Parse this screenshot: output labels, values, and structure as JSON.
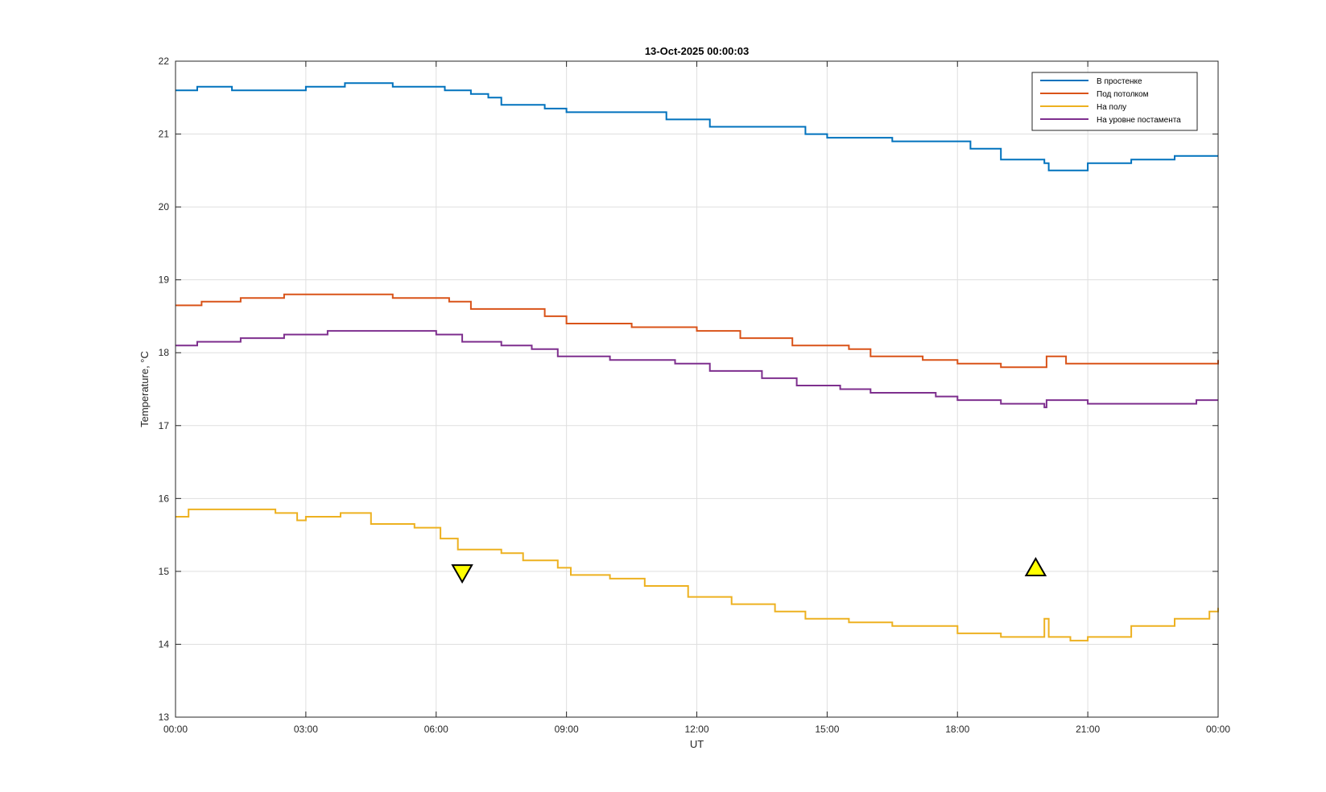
{
  "chart_data": {
    "type": "line",
    "title": "13-Oct-2025 00:00:03",
    "xlabel": "UT",
    "ylabel": "Temperature, °C",
    "xlim": [
      0,
      24
    ],
    "ylim": [
      13,
      22
    ],
    "grid": true,
    "legend_position": "top-right",
    "x_ticks": [
      {
        "value": 0,
        "label": "00:00"
      },
      {
        "value": 3,
        "label": "03:00"
      },
      {
        "value": 6,
        "label": "06:00"
      },
      {
        "value": 9,
        "label": "09:00"
      },
      {
        "value": 12,
        "label": "12:00"
      },
      {
        "value": 15,
        "label": "15:00"
      },
      {
        "value": 18,
        "label": "18:00"
      },
      {
        "value": 21,
        "label": "21:00"
      },
      {
        "value": 24,
        "label": "00:00"
      }
    ],
    "y_ticks": [
      {
        "value": 13,
        "label": "13"
      },
      {
        "value": 14,
        "label": "14"
      },
      {
        "value": 15,
        "label": "15"
      },
      {
        "value": 16,
        "label": "16"
      },
      {
        "value": 17,
        "label": "17"
      },
      {
        "value": 18,
        "label": "18"
      },
      {
        "value": 19,
        "label": "19"
      },
      {
        "value": 20,
        "label": "20"
      },
      {
        "value": 21,
        "label": "21"
      },
      {
        "value": 22,
        "label": "22"
      }
    ],
    "series": [
      {
        "name": "В простенке",
        "color": "#0072BD",
        "x": [
          0,
          0.5,
          1.3,
          2.5,
          3.0,
          3.9,
          4.2,
          5.0,
          6.2,
          6.8,
          7.2,
          7.5,
          8.5,
          9.0,
          10.5,
          11.3,
          12.3,
          14.5,
          15.0,
          16.5,
          17.5,
          18.3,
          19.0,
          20.0,
          20.1,
          21.0,
          22.0,
          23.0,
          24.0
        ],
        "values": [
          21.6,
          21.65,
          21.6,
          21.6,
          21.65,
          21.7,
          21.7,
          21.65,
          21.6,
          21.55,
          21.5,
          21.4,
          21.35,
          21.3,
          21.3,
          21.2,
          21.1,
          21.0,
          20.95,
          20.9,
          20.9,
          20.8,
          20.65,
          20.6,
          20.5,
          20.6,
          20.65,
          20.7,
          20.7
        ]
      },
      {
        "name": "Под потолком",
        "color": "#D95319",
        "x": [
          0,
          0.6,
          1.5,
          2.5,
          4.0,
          5.0,
          6.3,
          6.8,
          8.5,
          9.0,
          10.5,
          12.0,
          13.0,
          14.2,
          15.5,
          16.0,
          17.2,
          18.0,
          19.0,
          20.0,
          20.05,
          20.5,
          22.0,
          24.0
        ],
        "values": [
          18.65,
          18.7,
          18.75,
          18.8,
          18.8,
          18.75,
          18.7,
          18.6,
          18.5,
          18.4,
          18.35,
          18.3,
          18.2,
          18.1,
          18.05,
          17.95,
          17.9,
          17.85,
          17.8,
          17.8,
          17.95,
          17.85,
          17.85,
          17.9
        ]
      },
      {
        "name": "На полу",
        "color": "#EDB120",
        "x": [
          0,
          0.3,
          1.5,
          2.3,
          2.8,
          3.0,
          3.8,
          4.5,
          5.5,
          6.1,
          6.5,
          7.5,
          8.0,
          8.8,
          9.1,
          10.0,
          10.8,
          11.8,
          12.8,
          13.8,
          14.5,
          15.5,
          16.5,
          18.0,
          19.0,
          19.9,
          20.0,
          20.1,
          20.6,
          21.0,
          22.0,
          23.0,
          23.8,
          24.0
        ],
        "values": [
          15.75,
          15.85,
          15.85,
          15.8,
          15.7,
          15.75,
          15.8,
          15.65,
          15.6,
          15.45,
          15.3,
          15.25,
          15.15,
          15.05,
          14.95,
          14.9,
          14.8,
          14.65,
          14.55,
          14.45,
          14.35,
          14.3,
          14.25,
          14.15,
          14.1,
          14.1,
          14.35,
          14.1,
          14.05,
          14.1,
          14.25,
          14.35,
          14.45,
          14.5
        ]
      },
      {
        "name": "На уровне постамента",
        "color": "#7E2F8E",
        "x": [
          0,
          0.5,
          1.5,
          2.5,
          3.5,
          5.0,
          6.0,
          6.6,
          7.5,
          8.2,
          8.8,
          10.0,
          11.5,
          12.3,
          13.5,
          14.3,
          15.3,
          16.0,
          17.5,
          18.0,
          19.0,
          20.0,
          20.05,
          21.0,
          23.5,
          24.0
        ],
        "values": [
          18.1,
          18.15,
          18.2,
          18.25,
          18.3,
          18.3,
          18.25,
          18.15,
          18.1,
          18.05,
          17.95,
          17.9,
          17.85,
          17.75,
          17.65,
          17.55,
          17.5,
          17.45,
          17.4,
          17.35,
          17.3,
          17.25,
          17.35,
          17.3,
          17.35,
          17.35
        ]
      }
    ],
    "markers": [
      {
        "type": "triangle-down",
        "x": 6.6,
        "y": 14.98,
        "color": "#FFFF00"
      },
      {
        "type": "triangle-up",
        "x": 19.8,
        "y": 15.05,
        "color": "#FFFF00"
      }
    ]
  }
}
